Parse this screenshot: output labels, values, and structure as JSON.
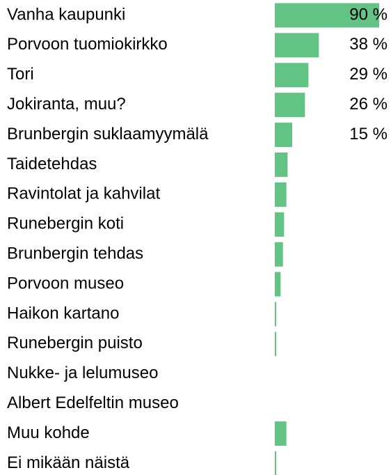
{
  "chart_data": {
    "type": "bar",
    "orientation": "horizontal",
    "color": "#63c384",
    "categories": [
      "Vanha kaupunki",
      "Porvoon tuomiokirkko",
      "Tori",
      "Jokiranta, muu?",
      "Brunbergin suklaamyymälä",
      "Taidetehdas",
      "Ravintolat ja kahvilat",
      "Runebergin koti",
      "Brunbergin tehdas",
      "Porvoon museo",
      "Haikon kartano",
      "Runebergin puisto",
      "Nukke- ja lelumuseo",
      "Albert Edelfeltin museo",
      "Muu kohde",
      "Ei mikään näistä"
    ],
    "values": [
      90,
      38,
      29,
      26,
      15,
      11,
      10,
      8,
      7,
      5,
      1,
      1,
      0,
      0,
      10,
      1
    ],
    "value_labels": [
      "90 %",
      "38 %",
      "29 %",
      "26 %",
      "15 %",
      null,
      null,
      null,
      null,
      null,
      null,
      null,
      null,
      null,
      null,
      null
    ]
  }
}
